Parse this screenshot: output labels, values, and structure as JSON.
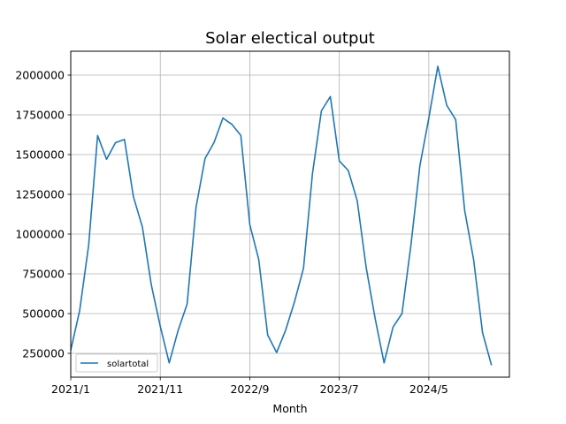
{
  "chart_data": {
    "type": "line",
    "title": "Solar electical output",
    "xlabel": "Month",
    "ylabel": "",
    "x_tick_labels": [
      "2021/1",
      "2021/11",
      "2022/9",
      "2023/7",
      "2024/5"
    ],
    "x_tick_months": [
      "2021/1",
      "2021/11",
      "2022/9",
      "2023/7",
      "2024/5"
    ],
    "y_ticks": [
      250000,
      500000,
      750000,
      1000000,
      1250000,
      1500000,
      1750000,
      2000000
    ],
    "ylim": [
      100000,
      2150000
    ],
    "grid": true,
    "legend_position": "lower-left",
    "line_color": "#1f77b4",
    "series": [
      {
        "name": "solartotal",
        "x": [
          "2021/1",
          "2021/2",
          "2021/3",
          "2021/4",
          "2021/5",
          "2021/6",
          "2021/7",
          "2021/8",
          "2021/9",
          "2021/10",
          "2021/11",
          "2021/12",
          "2022/1",
          "2022/2",
          "2022/3",
          "2022/4",
          "2022/5",
          "2022/6",
          "2022/7",
          "2022/8",
          "2022/9",
          "2022/10",
          "2022/11",
          "2022/12",
          "2023/1",
          "2023/2",
          "2023/3",
          "2023/4",
          "2023/5",
          "2023/6",
          "2023/7",
          "2023/8",
          "2023/9",
          "2023/10",
          "2023/11",
          "2023/12",
          "2024/1",
          "2024/2",
          "2024/3",
          "2024/4",
          "2024/5",
          "2024/6",
          "2024/7",
          "2024/8",
          "2024/9",
          "2024/10",
          "2024/11",
          "2024/12"
        ],
        "values": [
          270000,
          520000,
          930000,
          1620000,
          1470000,
          1575000,
          1595000,
          1235000,
          1045000,
          680000,
          420000,
          190000,
          395000,
          560000,
          1170000,
          1475000,
          1575000,
          1730000,
          1690000,
          1620000,
          1060000,
          840000,
          365000,
          255000,
          395000,
          575000,
          785000,
          1380000,
          1775000,
          1865000,
          1460000,
          1400000,
          1210000,
          790000,
          470000,
          190000,
          415000,
          500000,
          930000,
          1430000,
          1730000,
          2055000,
          1810000,
          1720000,
          1150000,
          840000,
          380000,
          175000
        ]
      }
    ]
  }
}
